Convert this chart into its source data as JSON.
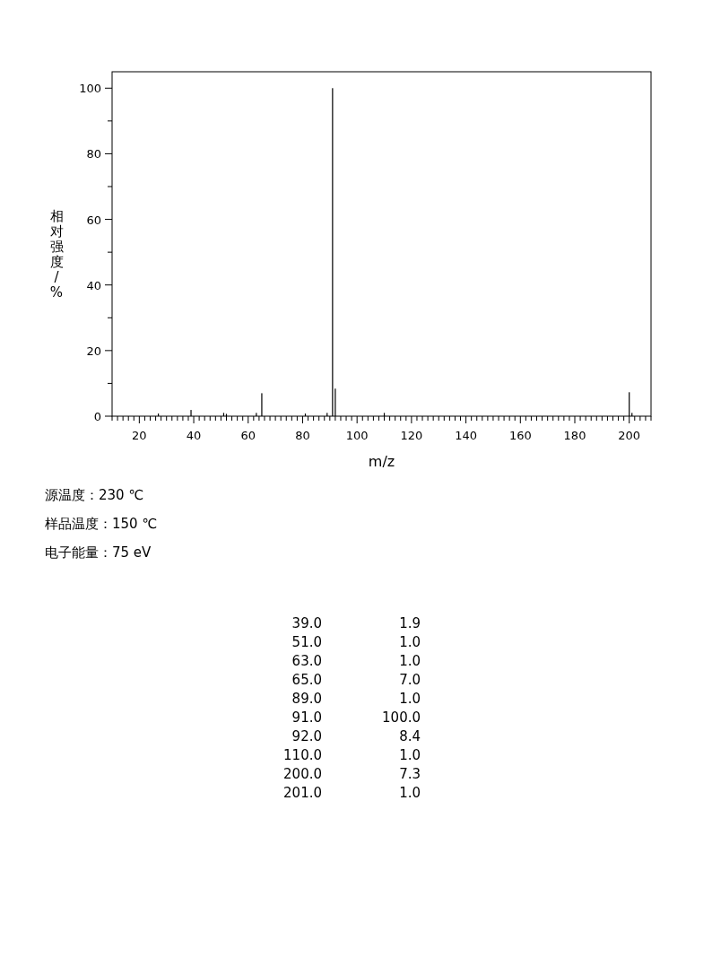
{
  "chart_data": {
    "type": "bar",
    "xlabel": "m/z",
    "ylabel": "相对强度/%",
    "x": [
      27,
      39,
      51,
      52,
      63,
      65,
      81,
      89,
      91,
      92,
      110,
      200,
      201
    ],
    "values": [
      0.8,
      1.9,
      1.0,
      0.7,
      1.0,
      7.0,
      0.8,
      1.0,
      100.0,
      8.4,
      1.0,
      7.3,
      1.0
    ],
    "color": "#000000",
    "xlim": [
      10,
      208
    ],
    "ylim": [
      0,
      105
    ],
    "xticks": [
      {
        "value": 10,
        "label": null
      },
      {
        "value": 12,
        "label": null
      },
      {
        "value": 14,
        "label": null
      },
      {
        "value": 16,
        "label": null
      },
      {
        "value": 18,
        "label": null
      },
      20,
      {
        "value": 22,
        "label": null
      },
      {
        "value": 24,
        "label": null
      },
      {
        "value": 26,
        "label": null
      },
      {
        "value": 28,
        "label": null
      },
      {
        "value": 30,
        "label": null
      },
      {
        "value": 32,
        "label": null
      },
      {
        "value": 34,
        "label": null
      },
      {
        "value": 36,
        "label": null
      },
      {
        "value": 38,
        "label": null
      },
      40,
      {
        "value": 42,
        "label": null
      },
      {
        "value": 44,
        "label": null
      },
      {
        "value": 46,
        "label": null
      },
      {
        "value": 48,
        "label": null
      },
      {
        "value": 50,
        "label": null
      },
      {
        "value": 52,
        "label": null
      },
      {
        "value": 54,
        "label": null
      },
      {
        "value": 56,
        "label": null
      },
      {
        "value": 58,
        "label": null
      },
      60,
      {
        "value": 62,
        "label": null
      },
      {
        "value": 64,
        "label": null
      },
      {
        "value": 66,
        "label": null
      },
      {
        "value": 68,
        "label": null
      },
      {
        "value": 70,
        "label": null
      },
      {
        "value": 72,
        "label": null
      },
      {
        "value": 74,
        "label": null
      },
      {
        "value": 76,
        "label": null
      },
      {
        "value": 78,
        "label": null
      },
      80,
      {
        "value": 82,
        "label": null
      },
      {
        "value": 84,
        "label": null
      },
      {
        "value": 86,
        "label": null
      },
      {
        "value": 88,
        "label": null
      },
      {
        "value": 90,
        "label": null
      },
      {
        "value": 92,
        "label": null
      },
      {
        "value": 94,
        "label": null
      },
      {
        "value": 96,
        "label": null
      },
      {
        "value": 98,
        "label": null
      },
      100,
      {
        "value": 102,
        "label": null
      },
      {
        "value": 104,
        "label": null
      },
      {
        "value": 106,
        "label": null
      },
      {
        "value": 108,
        "label": null
      },
      {
        "value": 110,
        "label": null
      },
      {
        "value": 112,
        "label": null
      },
      {
        "value": 114,
        "label": null
      },
      {
        "value": 116,
        "label": null
      },
      {
        "value": 118,
        "label": null
      },
      120,
      {
        "value": 122,
        "label": null
      },
      {
        "value": 124,
        "label": null
      },
      {
        "value": 126,
        "label": null
      },
      {
        "value": 128,
        "label": null
      },
      {
        "value": 130,
        "label": null
      },
      {
        "value": 132,
        "label": null
      },
      {
        "value": 134,
        "label": null
      },
      {
        "value": 136,
        "label": null
      },
      {
        "value": 138,
        "label": null
      },
      140,
      {
        "value": 142,
        "label": null
      },
      {
        "value": 144,
        "label": null
      },
      {
        "value": 146,
        "label": null
      },
      {
        "value": 148,
        "label": null
      },
      {
        "value": 150,
        "label": null
      },
      {
        "value": 152,
        "label": null
      },
      {
        "value": 154,
        "label": null
      },
      {
        "value": 156,
        "label": null
      },
      {
        "value": 158,
        "label": null
      },
      160,
      {
        "value": 162,
        "label": null
      },
      {
        "value": 164,
        "label": null
      },
      {
        "value": 166,
        "label": null
      },
      {
        "value": 168,
        "label": null
      },
      {
        "value": 170,
        "label": null
      },
      {
        "value": 172,
        "label": null
      },
      {
        "value": 174,
        "label": null
      },
      {
        "value": 176,
        "label": null
      },
      {
        "value": 178,
        "label": null
      },
      180,
      {
        "value": 182,
        "label": null
      },
      {
        "value": 184,
        "label": null
      },
      {
        "value": 186,
        "label": null
      },
      {
        "value": 188,
        "label": null
      },
      {
        "value": 190,
        "label": null
      },
      {
        "value": 192,
        "label": null
      },
      {
        "value": 194,
        "label": null
      },
      {
        "value": 196,
        "label": null
      },
      {
        "value": 198,
        "label": null
      },
      200,
      {
        "value": 202,
        "label": null
      },
      {
        "value": 204,
        "label": null
      },
      {
        "value": 206,
        "label": null
      },
      {
        "value": 208,
        "label": null
      }
    ],
    "yticks": [
      0,
      {
        "value": 10,
        "label": null
      },
      20,
      {
        "value": 30,
        "label": null
      },
      40,
      {
        "value": 50,
        "label": null
      },
      60,
      {
        "value": 70,
        "label": null
      },
      80,
      {
        "value": 90,
        "label": null
      },
      100
    ],
    "annotations": [
      "源温度：230 ℃",
      "样品温度：150 ℃",
      "电子能量：75 eV",
      "39.0 1.9",
      "51.0 1.0",
      "63.0 1.0",
      "65.0 7.0",
      "89.0 1.0",
      "91.0 100.0",
      "92.0 8.4",
      "110.0 1.0",
      "200.0 7.3",
      "201.0 1.0"
    ]
  }
}
